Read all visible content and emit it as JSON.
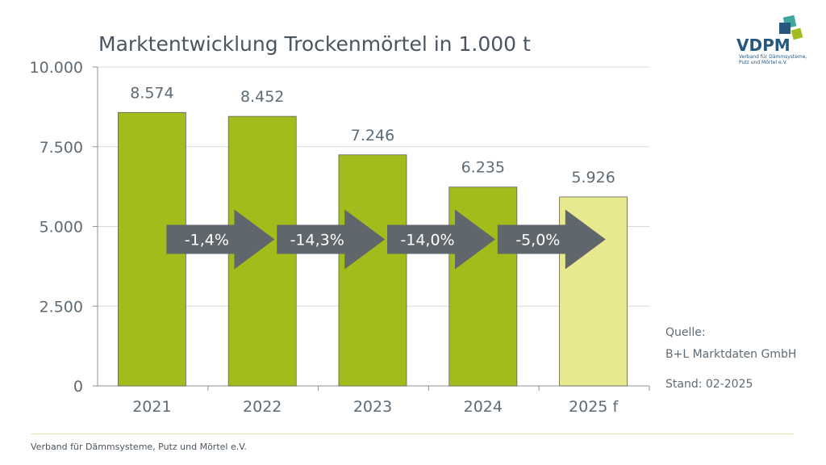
{
  "logo": {
    "text": "VDPM",
    "subtitle": "Verband für Dämmsysteme, Putz und Mörtel e.V."
  },
  "source": {
    "label": "Quelle:",
    "name": "B+L Marktdaten GmbH",
    "stand": "Stand: 02-2025"
  },
  "footer": {
    "text": "Verband für Dämmsysteme, Putz und Mörtel e.V."
  },
  "colors": {
    "actual": "#a2bd1b",
    "forecast": "#e8e88e",
    "arrow": "#5f666c",
    "grid": "#d9d9d9"
  },
  "chart_data": {
    "type": "bar",
    "title": "Marktentwicklung Trockenmörtel in 1.000 t",
    "categories": [
      "2021",
      "2022",
      "2023",
      "2024",
      "2025 f"
    ],
    "values": [
      8574,
      8452,
      7246,
      6235,
      5926
    ],
    "value_labels": [
      "8.574",
      "8.452",
      "7.246",
      "6.235",
      "5.926"
    ],
    "forecast": [
      false,
      false,
      false,
      false,
      true
    ],
    "ylim": [
      0,
      10000
    ],
    "yticks": [
      0,
      2500,
      5000,
      7500,
      10000
    ],
    "ytick_labels": [
      "0",
      "2.500",
      "5.000",
      "7.500",
      "10.000"
    ],
    "changes": [
      "-1,4%",
      "-14,3%",
      "-14,0%",
      "-5,0%"
    ],
    "grid": true
  }
}
